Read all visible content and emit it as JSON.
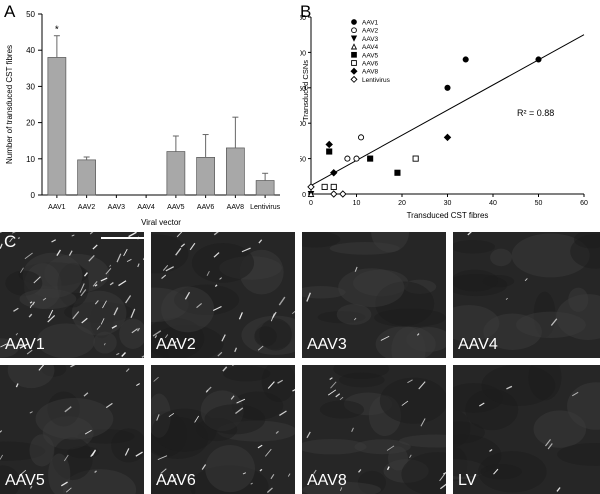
{
  "panels": {
    "a": {
      "letter": "A"
    },
    "b": {
      "letter": "B"
    },
    "c": {
      "letter": "C"
    }
  },
  "chart_data": [
    {
      "type": "bar",
      "panel": "A",
      "categories": [
        "AAV1",
        "AAV2",
        "AAV3",
        "AAV4",
        "AAV5",
        "AAV6",
        "AAV8",
        "Lentivirus"
      ],
      "values": [
        38,
        9.7,
        0,
        0,
        12,
        10.4,
        13,
        4
      ],
      "errors": [
        6,
        0.8,
        0,
        0,
        4.3,
        6.3,
        8.5,
        2
      ],
      "annotations": [
        {
          "category": "AAV1",
          "text": "*"
        }
      ],
      "xlabel": "Viral vector",
      "ylabel": "Number of transduced CST fibres",
      "ylim": [
        0,
        50
      ],
      "yticks": [
        0,
        10,
        20,
        30,
        40,
        50
      ],
      "color": "#a8a8a8"
    },
    {
      "type": "scatter",
      "panel": "B",
      "xlabel": "Transduced CST fibres",
      "ylabel": "Transduced CSNs",
      "xlim": [
        0,
        60
      ],
      "ylim": [
        0,
        250
      ],
      "xticks": [
        0,
        10,
        20,
        30,
        40,
        50,
        60
      ],
      "yticks": [
        0,
        50,
        100,
        150,
        200,
        250
      ],
      "r2_text": "R² = 0.88",
      "regression": {
        "x": [
          0,
          60
        ],
        "y": [
          12,
          225
        ]
      },
      "legend_position": "top-left",
      "series": [
        {
          "name": "AAV1",
          "marker": "circle-filled",
          "x": [
            30,
            34,
            50
          ],
          "y": [
            150,
            190,
            190
          ]
        },
        {
          "name": "AAV2",
          "marker": "circle-open",
          "x": [
            8,
            10,
            11
          ],
          "y": [
            50,
            50,
            80
          ]
        },
        {
          "name": "AAV3",
          "marker": "triangle-down-filled",
          "x": [
            0
          ],
          "y": [
            0
          ]
        },
        {
          "name": "AAV4",
          "marker": "triangle-up-open",
          "x": [
            0
          ],
          "y": [
            0
          ]
        },
        {
          "name": "AAV5",
          "marker": "square-filled",
          "x": [
            4,
            13,
            19
          ],
          "y": [
            60,
            50,
            30
          ]
        },
        {
          "name": "AAV6",
          "marker": "square-open",
          "x": [
            3,
            5,
            23
          ],
          "y": [
            10,
            10,
            50
          ]
        },
        {
          "name": "AAV8",
          "marker": "diamond-filled",
          "x": [
            4,
            5,
            30
          ],
          "y": [
            70,
            30,
            80
          ]
        },
        {
          "name": "Lentivirus",
          "marker": "diamond-open",
          "x": [
            0,
            5,
            7
          ],
          "y": [
            10,
            0,
            0
          ]
        }
      ]
    }
  ],
  "micrographs": [
    {
      "label": "AAV1"
    },
    {
      "label": "AAV2"
    },
    {
      "label": "AAV3"
    },
    {
      "label": "AAV4"
    },
    {
      "label": "AAV5"
    },
    {
      "label": "AAV6"
    },
    {
      "label": "AAV8"
    },
    {
      "label": "LV"
    }
  ],
  "colors": {
    "bar": "#a8a8a8",
    "micro_bg": "#262626",
    "micro_text": "#ffffff"
  }
}
